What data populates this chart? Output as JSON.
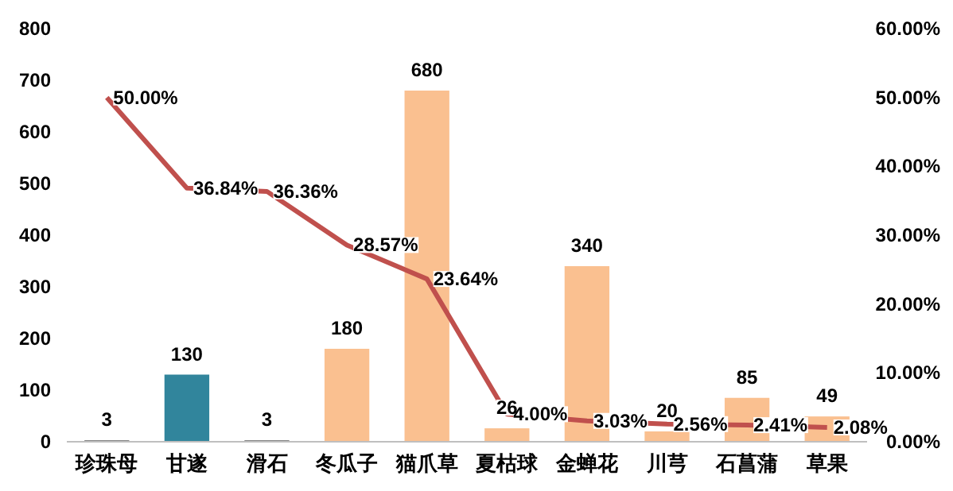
{
  "chart_data": {
    "type": "bar",
    "categories": [
      "珍珠母",
      "甘遂",
      "滑石",
      "冬瓜子",
      "猫爪草",
      "夏枯球",
      "金蝉花",
      "川芎",
      "石菖蒲",
      "草果"
    ],
    "series": [
      {
        "colors": [
          "#7f7f7f",
          "#31859c",
          "#7f7f7f",
          "#fac090",
          "#fac090",
          "#fac090",
          "#fac090",
          "#fac090",
          "#fac090",
          "#fac090"
        ],
        "values": [
          3,
          130,
          3,
          180,
          680,
          26,
          340,
          20,
          85,
          49
        ],
        "value_labels": [
          "3",
          "130",
          "3",
          "180",
          "680",
          "26",
          "340",
          "20",
          "85",
          "49"
        ]
      },
      {
        "type": "line",
        "axis": "y2",
        "color": "#c0504d",
        "values": [
          50.0,
          36.84,
          36.36,
          28.57,
          23.64,
          4.0,
          3.03,
          2.56,
          2.41,
          2.08
        ],
        "value_labels": [
          "50.00%",
          "36.84%",
          "36.36%",
          "28.57%",
          "23.64%",
          "4.00%",
          "3.03%",
          "2.56%",
          "2.41%",
          "2.08%"
        ]
      }
    ],
    "ylim": [
      0,
      800
    ],
    "yticks": [
      0,
      100,
      200,
      300,
      400,
      500,
      600,
      700,
      800
    ],
    "y2lim": [
      0,
      60
    ],
    "y2ticks": [
      {
        "value": 0,
        "label": "0.00%"
      },
      {
        "value": 10,
        "label": "10.00%"
      },
      {
        "value": 20,
        "label": "20.00%"
      },
      {
        "value": 30,
        "label": "30.00%"
      },
      {
        "value": 40,
        "label": "40.00%"
      },
      {
        "value": 50,
        "label": "50.00%"
      },
      {
        "value": 60,
        "label": "60.00%"
      }
    ],
    "grid": false
  }
}
